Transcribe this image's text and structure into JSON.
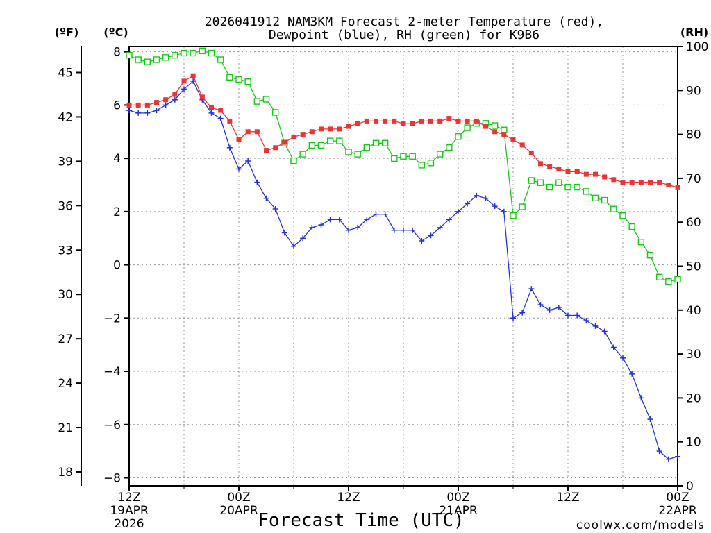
{
  "chart_data": {
    "type": "line",
    "title_line1": "2026041912 NAM3KM Forecast 2-meter Temperature (red),",
    "title_line2": "Dewpoint (blue), RH (green) for K9B6",
    "xlabel": "Forecast Time (UTC)",
    "credit": "coolwx.com/models",
    "left_unit_f": "(ºF)",
    "left_unit_c": "(ºC)",
    "right_unit": "(RH)",
    "x_hours_range": [
      0,
      60
    ],
    "x_ticks": [
      {
        "hour": 0,
        "line1": "12Z",
        "line2": "19APR",
        "line3": "2026"
      },
      {
        "hour": 12,
        "line1": "00Z",
        "line2": "20APR",
        "line3": ""
      },
      {
        "hour": 24,
        "line1": "12Z",
        "line2": "",
        "line3": ""
      },
      {
        "hour": 36,
        "line1": "00Z",
        "line2": "21APR",
        "line3": ""
      },
      {
        "hour": 48,
        "line1": "12Z",
        "line2": "",
        "line3": ""
      },
      {
        "hour": 60,
        "line1": "00Z",
        "line2": "22APR",
        "line3": ""
      }
    ],
    "celsius_axis": {
      "min": -8.3,
      "max": 8.2,
      "ticks": [
        8,
        6,
        4,
        2,
        0,
        -2,
        -4,
        -6,
        -8
      ]
    },
    "fahrenheit_axis": {
      "ticks": [
        45,
        42,
        39,
        36,
        33,
        30,
        27,
        24,
        21,
        18
      ]
    },
    "rh_axis": {
      "min": 0,
      "max": 100,
      "ticks": [
        100,
        90,
        80,
        70,
        60,
        50,
        40,
        30,
        20,
        10,
        0
      ]
    },
    "colors": {
      "temperature": "#ee3333",
      "dewpoint": "#2233dd",
      "rh": "#11cc11",
      "grid": "#999999",
      "credit": "#ee3333"
    },
    "series": [
      {
        "name": "Temperature (°C)",
        "axis": "celsius",
        "marker": "filled-square",
        "x": [
          0,
          1,
          2,
          3,
          4,
          5,
          6,
          7,
          8,
          9,
          10,
          11,
          12,
          13,
          14,
          15,
          16,
          17,
          18,
          19,
          20,
          21,
          22,
          23,
          24,
          25,
          26,
          27,
          28,
          29,
          30,
          31,
          32,
          33,
          34,
          35,
          36,
          37,
          38,
          39,
          40,
          41,
          42,
          43,
          44,
          45,
          46,
          47,
          48,
          49,
          50,
          51,
          52,
          53,
          54,
          55,
          56,
          57,
          58,
          59,
          60
        ],
        "values": [
          6.0,
          6.0,
          6.0,
          6.1,
          6.2,
          6.4,
          6.9,
          7.1,
          6.3,
          5.9,
          5.8,
          5.4,
          4.7,
          5.0,
          5.0,
          4.3,
          4.4,
          4.6,
          4.8,
          4.9,
          5.0,
          5.1,
          5.1,
          5.1,
          5.2,
          5.3,
          5.4,
          5.4,
          5.4,
          5.4,
          5.3,
          5.3,
          5.4,
          5.4,
          5.4,
          5.5,
          5.4,
          5.4,
          5.4,
          5.2,
          5.0,
          4.9,
          4.7,
          4.5,
          4.2,
          3.8,
          3.7,
          3.6,
          3.5,
          3.5,
          3.4,
          3.4,
          3.3,
          3.2,
          3.1,
          3.1,
          3.1,
          3.1,
          3.1,
          3.0,
          2.9
        ]
      },
      {
        "name": "Dewpoint (°C)",
        "axis": "celsius",
        "marker": "plus",
        "x": [
          0,
          1,
          2,
          3,
          4,
          5,
          6,
          7,
          8,
          9,
          10,
          11,
          12,
          13,
          14,
          15,
          16,
          17,
          18,
          19,
          20,
          21,
          22,
          23,
          24,
          25,
          26,
          27,
          28,
          29,
          30,
          31,
          32,
          33,
          34,
          35,
          36,
          37,
          38,
          39,
          40,
          41,
          42,
          43,
          44,
          45,
          46,
          47,
          48,
          49,
          50,
          51,
          52,
          53,
          54,
          55,
          56,
          57,
          58,
          59,
          60
        ],
        "values": [
          5.8,
          5.7,
          5.7,
          5.8,
          6.0,
          6.2,
          6.6,
          6.9,
          6.2,
          5.7,
          5.5,
          4.4,
          3.6,
          3.9,
          3.1,
          2.5,
          2.1,
          1.2,
          0.7,
          1.0,
          1.4,
          1.5,
          1.7,
          1.7,
          1.3,
          1.4,
          1.7,
          1.9,
          1.9,
          1.3,
          1.3,
          1.3,
          0.9,
          1.1,
          1.4,
          1.7,
          2.0,
          2.3,
          2.6,
          2.5,
          2.2,
          2.0,
          -2.0,
          -1.8,
          -0.9,
          -1.5,
          -1.7,
          -1.6,
          -1.9,
          -1.9,
          -2.1,
          -2.3,
          -2.5,
          -3.1,
          -3.5,
          -4.1,
          -5.0,
          -5.8,
          -7.0,
          -7.3,
          -7.2
        ]
      },
      {
        "name": "RH (%)",
        "axis": "rh",
        "marker": "open-square",
        "x": [
          0,
          1,
          2,
          3,
          4,
          5,
          6,
          7,
          8,
          9,
          10,
          11,
          12,
          13,
          14,
          15,
          16,
          17,
          18,
          19,
          20,
          21,
          22,
          23,
          24,
          25,
          26,
          27,
          28,
          29,
          30,
          31,
          32,
          33,
          34,
          35,
          36,
          37,
          38,
          39,
          40,
          41,
          42,
          43,
          44,
          45,
          46,
          47,
          48,
          49,
          50,
          51,
          52,
          53,
          54,
          55,
          56,
          57,
          58,
          59,
          60
        ],
        "values": [
          98,
          97,
          96.5,
          97,
          97.5,
          98,
          98.5,
          98.5,
          99,
          98.5,
          97,
          93,
          92.5,
          92,
          87.5,
          88,
          85,
          78,
          74,
          75.5,
          77.5,
          77.5,
          78.5,
          78.5,
          76,
          75.5,
          77,
          78,
          78,
          74.5,
          75,
          75,
          73,
          73.5,
          75.5,
          77,
          79.5,
          81.5,
          82.5,
          82.5,
          82,
          81,
          61.5,
          63.5,
          69.5,
          69,
          68,
          69,
          68,
          68,
          67,
          65.5,
          65,
          63,
          61.5,
          59,
          55.5,
          52.5,
          47.5,
          46.5,
          47
        ]
      }
    ]
  }
}
